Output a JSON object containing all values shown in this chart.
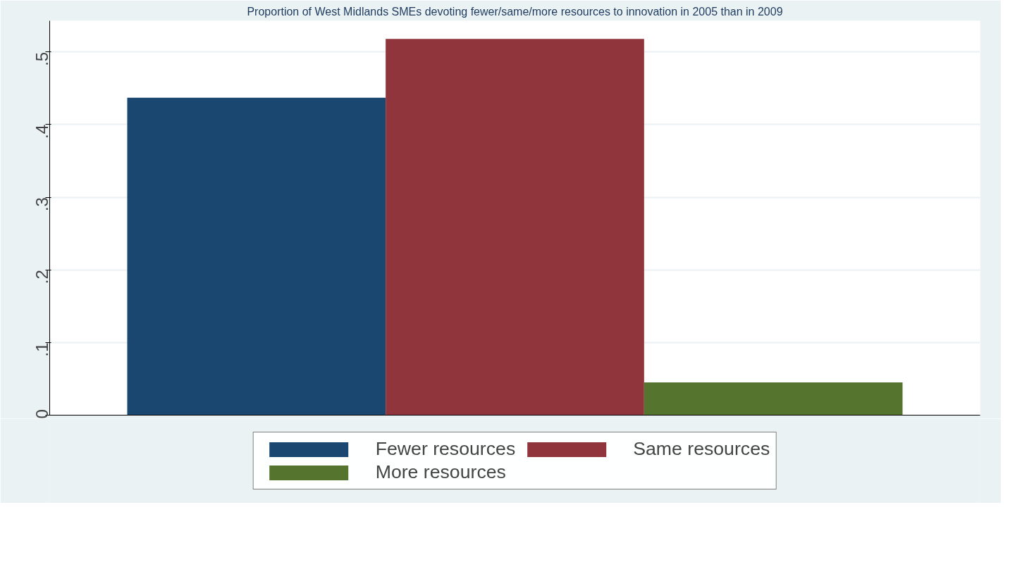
{
  "chart_data": {
    "type": "bar",
    "title": "Proportion of West Midlands SMEs devoting fewer/same/more resources to innovation in 2005 than in 2009",
    "categories": [
      null
    ],
    "series": [
      {
        "name": "Fewer resources",
        "color": "#1a476f",
        "values": [
          0.437
        ]
      },
      {
        "name": "Same resources",
        "color": "#90353b",
        "values": [
          0.518
        ]
      },
      {
        "name": "More resources",
        "color": "#55752f",
        "values": [
          0.045
        ]
      }
    ],
    "ylim": [
      0,
      0.543
    ],
    "yticks": [
      {
        "value": 0,
        "label": "0"
      },
      {
        "value": 0.1,
        "label": ".1"
      },
      {
        "value": 0.2,
        "label": ".2"
      },
      {
        "value": 0.3,
        "label": ".3"
      },
      {
        "value": 0.4,
        "label": ".4"
      },
      {
        "value": 0.5,
        "label": ".5"
      }
    ],
    "grid": "y",
    "legend": "bottom"
  }
}
